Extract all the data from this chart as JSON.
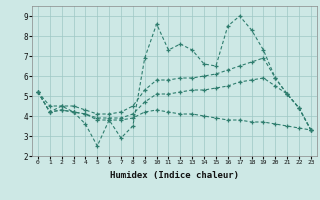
{
  "title": "",
  "xlabel": "Humidex (Indice chaleur)",
  "ylabel": "",
  "bg_color": "#cde8e5",
  "grid_color": "#9ec8c4",
  "line_color": "#2e7d6e",
  "xlim": [
    -0.5,
    23.5
  ],
  "ylim": [
    2,
    9.5
  ],
  "yticks": [
    2,
    3,
    4,
    5,
    6,
    7,
    8,
    9
  ],
  "xticks": [
    0,
    1,
    2,
    3,
    4,
    5,
    6,
    7,
    8,
    9,
    10,
    11,
    12,
    13,
    14,
    15,
    16,
    17,
    18,
    19,
    20,
    21,
    22,
    23
  ],
  "series": [
    [
      5.2,
      4.2,
      4.5,
      4.2,
      3.6,
      2.5,
      3.8,
      2.9,
      3.5,
      6.9,
      8.6,
      7.3,
      7.6,
      7.3,
      6.6,
      6.5,
      8.5,
      9.0,
      8.3,
      7.3,
      5.9,
      5.1,
      4.4,
      3.3
    ],
    [
      5.2,
      4.5,
      4.5,
      4.5,
      4.3,
      4.1,
      4.1,
      4.2,
      4.5,
      5.3,
      5.8,
      5.8,
      5.9,
      5.9,
      6.0,
      6.1,
      6.3,
      6.5,
      6.7,
      6.9,
      5.9,
      5.1,
      4.4,
      3.3
    ],
    [
      5.2,
      4.2,
      4.3,
      4.2,
      4.1,
      3.9,
      3.9,
      3.9,
      4.1,
      4.7,
      5.1,
      5.1,
      5.2,
      5.3,
      5.3,
      5.4,
      5.5,
      5.7,
      5.8,
      5.9,
      5.5,
      5.1,
      4.4,
      3.3
    ],
    [
      5.2,
      4.2,
      4.3,
      4.2,
      4.1,
      3.8,
      3.8,
      3.8,
      3.9,
      4.2,
      4.3,
      4.2,
      4.1,
      4.1,
      4.0,
      3.9,
      3.8,
      3.8,
      3.7,
      3.7,
      3.6,
      3.5,
      3.4,
      3.3
    ]
  ]
}
